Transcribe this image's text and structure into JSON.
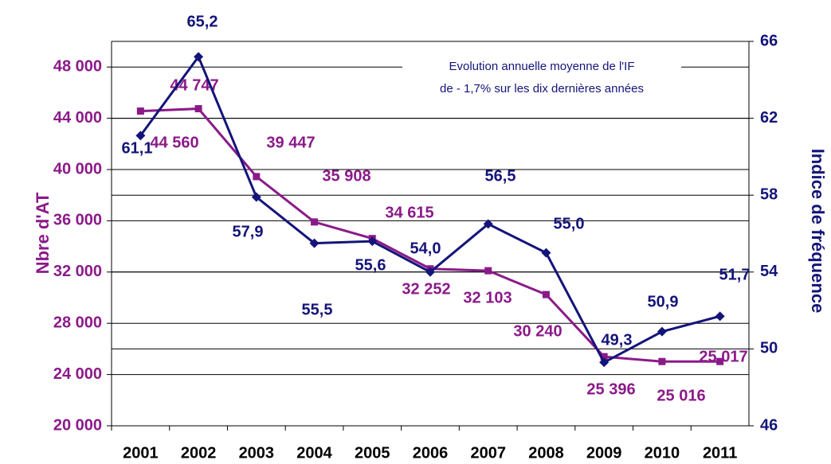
{
  "chart_data": {
    "type": "line",
    "categories": [
      "2001",
      "2002",
      "2003",
      "2004",
      "2005",
      "2006",
      "2007",
      "2008",
      "2009",
      "2010",
      "2011"
    ],
    "annotation": [
      "Evolution annuelle moyenne de l'IF",
      "de - 1,7% sur les dix dernières années"
    ],
    "ylabel": "Nbre d'AT",
    "y2label": "Indice de fréquence",
    "ylim": [
      20000,
      50000
    ],
    "yticks": [
      {
        "value": 20000,
        "label": "20 000"
      },
      {
        "value": 24000,
        "label": "24 000"
      },
      {
        "value": 28000,
        "label": "28 000"
      },
      {
        "value": 32000,
        "label": "32 000"
      },
      {
        "value": 36000,
        "label": "36 000"
      },
      {
        "value": 40000,
        "label": "40 000"
      },
      {
        "value": 44000,
        "label": "44 000"
      },
      {
        "value": 48000,
        "label": "48 000"
      }
    ],
    "y2lim": [
      46,
      66
    ],
    "y2ticks": [
      46,
      50,
      54,
      58,
      62,
      66
    ],
    "grid": true,
    "series": [
      {
        "name": "Nbre d'AT",
        "color": "#8b1a89",
        "marker": "square",
        "values": [
          44560,
          44747,
          39447,
          35908,
          34615,
          32252,
          32103,
          30240,
          25396,
          25016,
          25017
        ],
        "value_labels": [
          "44 560",
          "44 747",
          "39 447",
          "35 908",
          "34 615",
          "32 252",
          "32 103",
          "30 240",
          "25 396",
          "25 016",
          "25 017"
        ]
      },
      {
        "name": "Indice de fréquence",
        "color": "#14147a",
        "marker": "diamond",
        "axis": "y2",
        "values": [
          61.1,
          65.2,
          57.9,
          55.5,
          55.6,
          54.0,
          56.5,
          55.0,
          49.3,
          50.9,
          51.7
        ],
        "value_labels": [
          "61,1",
          "65,2",
          "57,9",
          "55,5",
          "55,6",
          "54,0",
          "56,5",
          "55,0",
          "49,3",
          "50,9",
          "51,7"
        ]
      }
    ]
  }
}
